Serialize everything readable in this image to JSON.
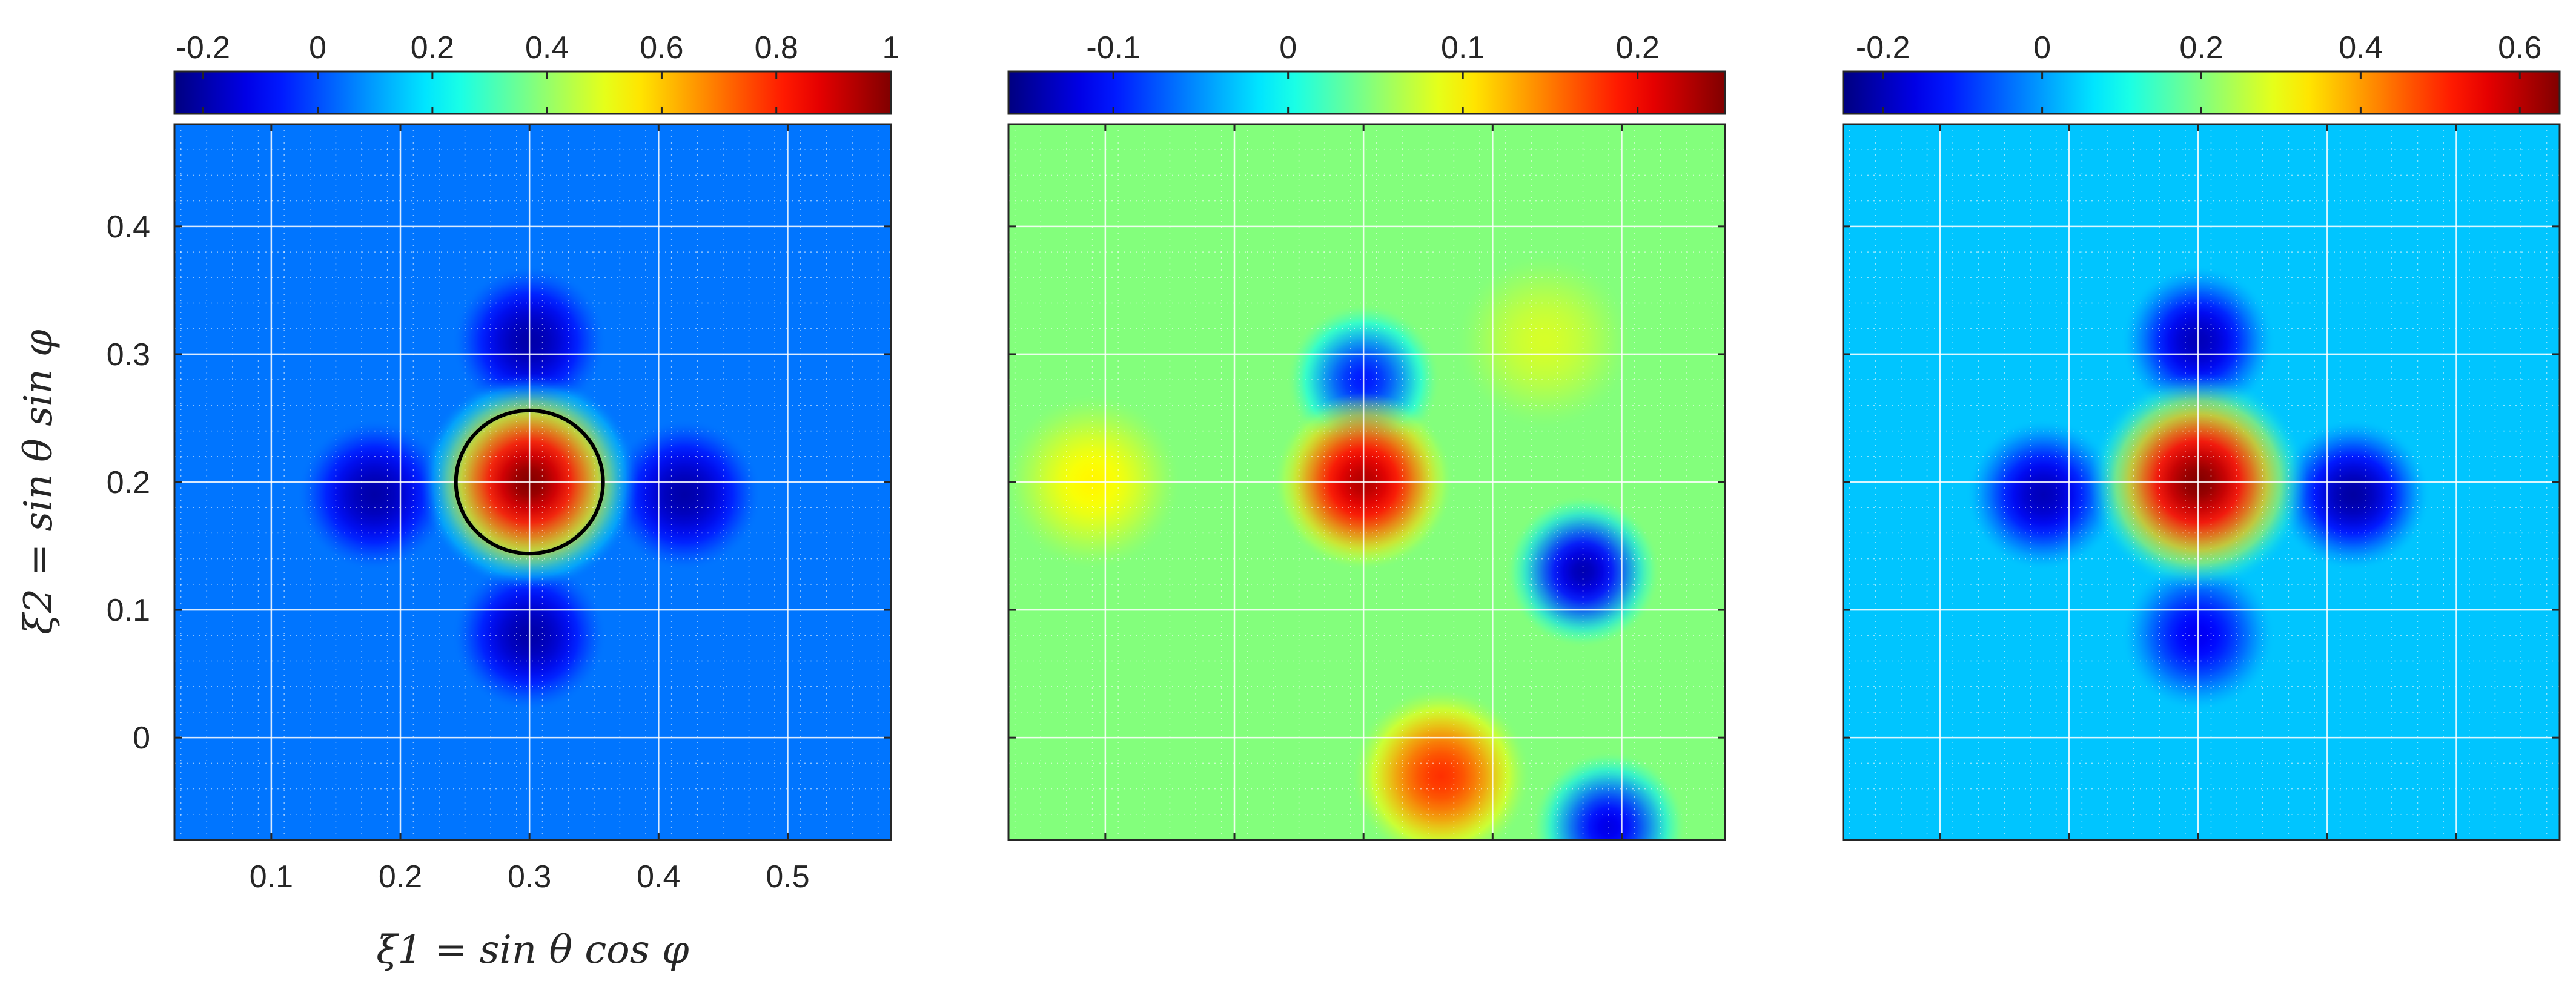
{
  "chart_data": [
    {
      "type": "heatmap",
      "panel": "left",
      "colormap": "jet",
      "xlim": [
        0.025,
        0.58
      ],
      "ylim": [
        -0.08,
        0.48
      ],
      "x_ticks": [
        0.1,
        0.2,
        0.3,
        0.4,
        0.5
      ],
      "x_tick_labels": [
        "0.1",
        "0.2",
        "0.3",
        "0.4",
        "0.5"
      ],
      "y_ticks": [
        0,
        0.1,
        0.2,
        0.3,
        0.4
      ],
      "y_tick_labels": [
        "0",
        "0.1",
        "0.2",
        "0.3",
        "0.4"
      ],
      "xlabel": "ξ1 = sin θ cos φ",
      "ylabel": "ξ2 = sin θ sin φ",
      "grid": true,
      "colorbar": {
        "position": "top",
        "range": [
          -0.25,
          1.0
        ],
        "ticks": [
          -0.2,
          0,
          0.2,
          0.4,
          0.6,
          0.8,
          1
        ],
        "tick_labels": [
          "-0.2",
          "0",
          "0.2",
          "0.4",
          "0.6",
          "0.8",
          "1"
        ]
      },
      "features": [
        {
          "kind": "peak",
          "x": 0.3,
          "y": 0.2,
          "value": 1.0
        },
        {
          "kind": "trough",
          "x": 0.3,
          "y": 0.31,
          "value": -0.2
        },
        {
          "kind": "trough",
          "x": 0.3,
          "y": 0.08,
          "value": -0.2
        },
        {
          "kind": "trough",
          "x": 0.18,
          "y": 0.19,
          "value": -0.2
        },
        {
          "kind": "trough",
          "x": 0.42,
          "y": 0.19,
          "value": -0.2
        }
      ],
      "contour": {
        "center": [
          0.3,
          0.2
        ],
        "radius_x": 0.057,
        "radius_y": 0.056,
        "color": "#000000"
      }
    },
    {
      "type": "heatmap",
      "panel": "middle",
      "colormap": "jet",
      "xlim": [
        0.025,
        0.58
      ],
      "ylim": [
        -0.08,
        0.48
      ],
      "grid": true,
      "colorbar": {
        "position": "top",
        "range": [
          -0.16,
          0.25
        ],
        "ticks": [
          -0.1,
          0,
          0.1,
          0.2
        ],
        "tick_labels": [
          "-0.1",
          "0",
          "0.1",
          "0.2"
        ]
      },
      "features": [
        {
          "kind": "peak",
          "x": 0.3,
          "y": 0.2,
          "value": 0.23
        },
        {
          "kind": "peak",
          "x": 0.36,
          "y": -0.03,
          "value": 0.18
        },
        {
          "kind": "peak",
          "x": 0.09,
          "y": 0.2,
          "value": 0.1
        },
        {
          "kind": "peak",
          "x": 0.44,
          "y": 0.31,
          "value": 0.08
        },
        {
          "kind": "trough",
          "x": 0.47,
          "y": 0.13,
          "value": -0.14
        },
        {
          "kind": "trough",
          "x": 0.49,
          "y": -0.07,
          "value": -0.12
        },
        {
          "kind": "trough",
          "x": 0.3,
          "y": 0.28,
          "value": -0.1
        }
      ]
    },
    {
      "type": "heatmap",
      "panel": "right",
      "colormap": "jet",
      "xlim": [
        0.025,
        0.58
      ],
      "ylim": [
        -0.08,
        0.48
      ],
      "grid": true,
      "colorbar": {
        "position": "top",
        "range": [
          -0.25,
          0.65
        ],
        "ticks": [
          -0.2,
          0,
          0.2,
          0.4,
          0.6
        ],
        "tick_labels": [
          "-0.2",
          "0",
          "0.2",
          "0.4",
          "0.6"
        ]
      },
      "features": [
        {
          "kind": "peak",
          "x": 0.3,
          "y": 0.2,
          "value": 0.65
        },
        {
          "kind": "trough",
          "x": 0.3,
          "y": 0.31,
          "value": -0.2
        },
        {
          "kind": "trough",
          "x": 0.3,
          "y": 0.08,
          "value": -0.15
        },
        {
          "kind": "trough",
          "x": 0.18,
          "y": 0.19,
          "value": -0.2
        },
        {
          "kind": "trough",
          "x": 0.42,
          "y": 0.19,
          "value": -0.22
        }
      ]
    }
  ]
}
